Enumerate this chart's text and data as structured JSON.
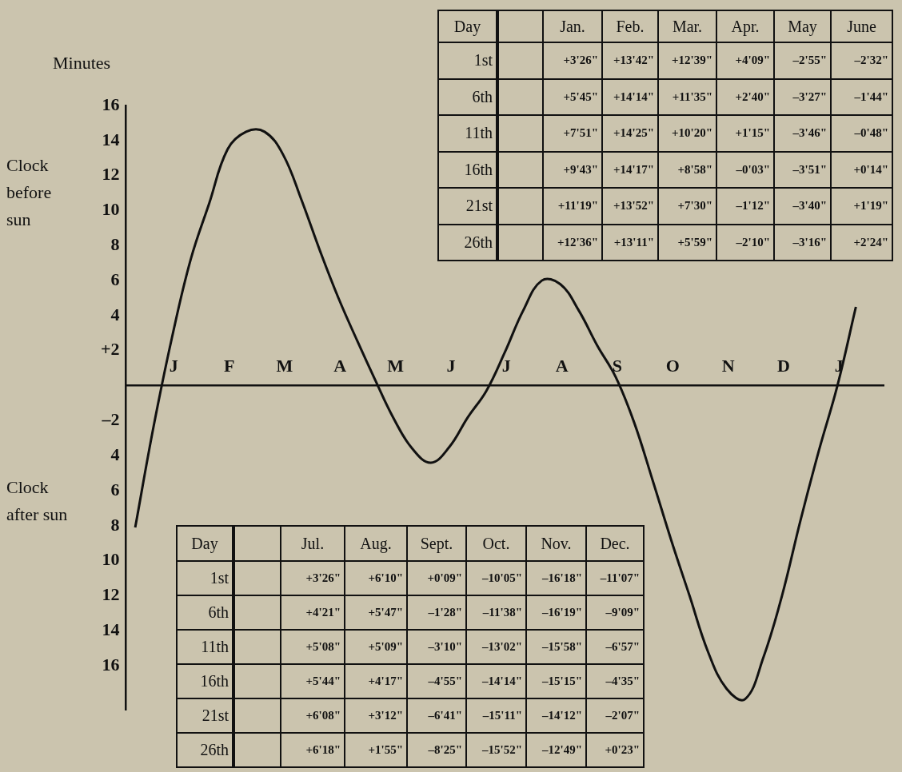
{
  "chart_data": {
    "type": "line",
    "ylabel": "Minutes",
    "color": "#111111",
    "grid": false,
    "legend": false,
    "marker": "none",
    "line_style": "solid",
    "ylim": [
      -18.5,
      16
    ],
    "categories": [
      null,
      null,
      "J",
      null,
      null,
      "F",
      null,
      null,
      "M",
      null,
      null,
      "A",
      null,
      null,
      "M",
      null,
      null,
      "J",
      null,
      null,
      "J",
      null,
      null,
      "A",
      null,
      null,
      "S",
      null,
      null,
      "O",
      null,
      null,
      "N",
      null,
      null,
      "D",
      null,
      null,
      "J",
      null,
      null
    ],
    "yticks": [
      {
        "value": 16,
        "label": "16"
      },
      {
        "value": 14,
        "label": "14"
      },
      {
        "value": 12,
        "label": "12"
      },
      {
        "value": 10,
        "label": "10"
      },
      {
        "value": 8,
        "label": "8"
      },
      {
        "value": 6,
        "label": "6"
      },
      {
        "value": 4,
        "label": "4"
      },
      {
        "value": 2,
        "label": "+2"
      },
      {
        "value": -2,
        "label": "–2"
      },
      {
        "value": -4,
        "label": "4"
      },
      {
        "value": -6,
        "label": "6"
      },
      {
        "value": -8,
        "label": "8"
      },
      {
        "value": -10,
        "label": "10"
      },
      {
        "value": -12,
        "label": "12"
      },
      {
        "value": -14,
        "label": "14"
      },
      {
        "value": -16,
        "label": "16"
      }
    ],
    "values": [
      -8.1,
      -2.3,
      2.8,
      7.2,
      10.4,
      13.5,
      14.5,
      14.5,
      13.2,
      10.6,
      7.7,
      5.0,
      2.6,
      0.3,
      -1.9,
      -3.6,
      -4.4,
      -3.5,
      -1.8,
      -0.3,
      1.9,
      4.3,
      6.0,
      5.8,
      4.3,
      2.3,
      0.5,
      -2.1,
      -5.4,
      -8.8,
      -12.0,
      -15.2,
      -17.3,
      -17.9,
      -15.5,
      -12.0,
      -7.7,
      -3.7,
      0,
      4.5,
      null
    ],
    "annotations": [
      "Clock before sun",
      "Clock after sun",
      "Day",
      "Jan.",
      "Feb.",
      "Mar.",
      "Apr.",
      "May",
      "June",
      "1st",
      "+3'26\"",
      "+13'42\"",
      "+12'39\"",
      "+4'09\"",
      "–2'55\"",
      "–2'32\"",
      "6th",
      "+5'45\"",
      "+14'14\"",
      "+11'35\"",
      "+2'40\"",
      "–3'27\"",
      "–1'44\"",
      "11th",
      "+7'51\"",
      "+14'25\"",
      "+10'20\"",
      "+1'15\"",
      "–3'46\"",
      "–0'48\"",
      "16th",
      "+9'43\"",
      "+14'17\"",
      "+8'58\"",
      "–0'03\"",
      "–3'51\"",
      "+0'14\"",
      "21st",
      "+11'19\"",
      "+13'52\"",
      "+7'30\"",
      "–1'12\"",
      "–3'40\"",
      "+1'19\"",
      "26th",
      "+12'36\"",
      "+13'11\"",
      "+5'59\"",
      "–2'10\"",
      "–3'16\"",
      "+2'24\"",
      "Day",
      "Jul.",
      "Aug.",
      "Sept.",
      "Oct.",
      "Nov.",
      "Dec.",
      "1st",
      "+3'26\"",
      "+6'10\"",
      "+0'09\"",
      "–10'05\"",
      "–16'18\"",
      "–11'07\"",
      "6th",
      "+4'21\"",
      "+5'47\"",
      "–1'28\"",
      "–11'38\"",
      "–16'19\"",
      "–9'09\"",
      "11th",
      "+5'08\"",
      "+5'09\"",
      "–3'10\"",
      "–13'02\"",
      "–15'58\"",
      "–6'57\"",
      "16th",
      "+5'44\"",
      "+4'17\"",
      "–4'55\"",
      "–14'14\"",
      "–15'15\"",
      "–4'35\"",
      "21st",
      "+6'08\"",
      "+3'12\"",
      "–6'41\"",
      "–15'11\"",
      "–14'12\"",
      "–2'07\"",
      "26th",
      "+6'18\"",
      "+1'55\"",
      "–8'25\"",
      "–15'52\"",
      "–12'49\"",
      "+0'23\""
    ]
  }
}
